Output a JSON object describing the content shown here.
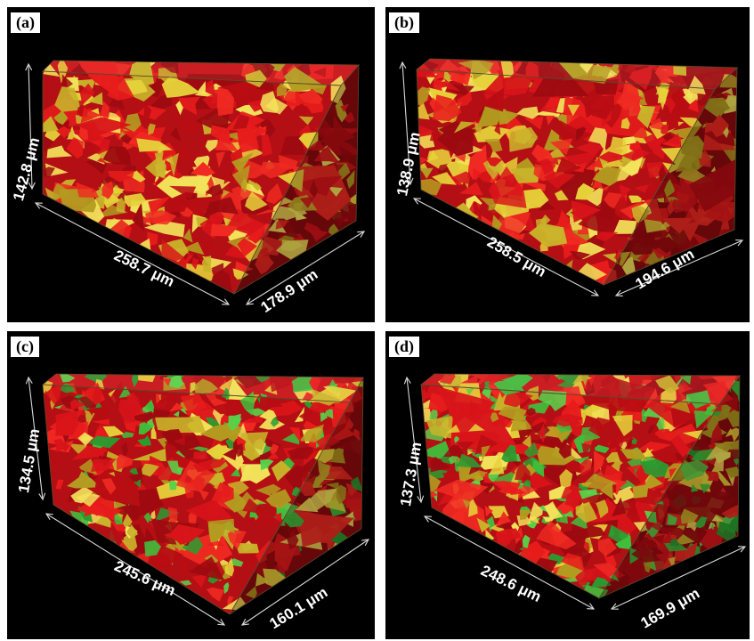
{
  "colors": {
    "background": "#000000",
    "red_phase": "#d8141a",
    "yellow_phase": "#e6d23a",
    "green_phase": "#3fbf3c"
  },
  "panels": [
    {
      "label": "(a)",
      "dims": {
        "height": "142.8 μm",
        "length": "258.7 μm",
        "depth": "178.9 μm"
      },
      "phases": [
        "red",
        "yellow"
      ]
    },
    {
      "label": "(b)",
      "dims": {
        "height": "138.9 μm",
        "length": "258.5 μm",
        "depth": "194.6 μm"
      },
      "phases": [
        "red",
        "yellow"
      ]
    },
    {
      "label": "(c)",
      "dims": {
        "height": "134.5 μm",
        "length": "245.6 μm",
        "depth": "160.1 μm"
      },
      "phases": [
        "red",
        "yellow",
        "green"
      ]
    },
    {
      "label": "(d)",
      "dims": {
        "height": "137.3 μm",
        "length": "248.6 μm",
        "depth": "169.9 μm"
      },
      "phases": [
        "red",
        "yellow",
        "green"
      ]
    }
  ]
}
